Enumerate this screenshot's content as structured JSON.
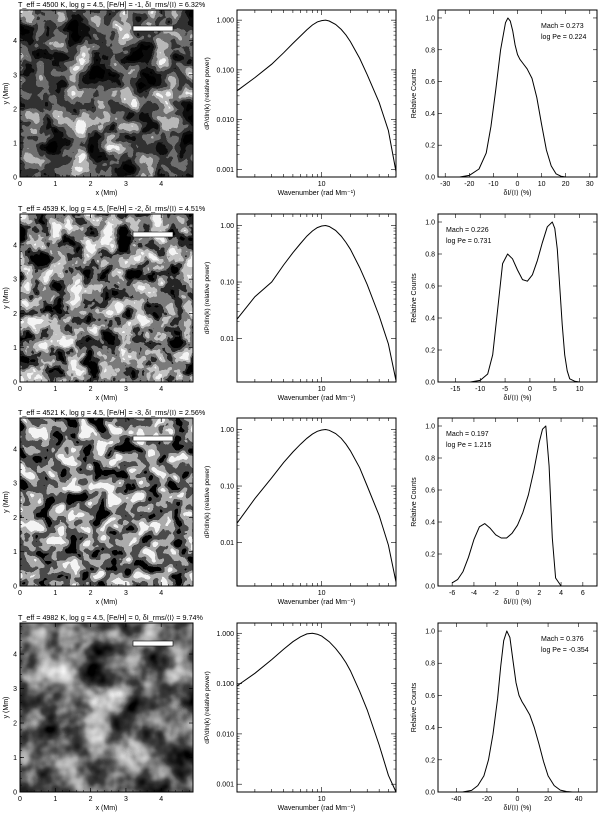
{
  "chart_data": [
    {
      "type": "image",
      "title": "T_eff = 4500 K, log g = 4.5, [Fe/H] = -1, δI_rms/⟨I⟩ = 6.32%",
      "xlabel": "x (Mm)",
      "ylabel": "y (Mm)",
      "xticks": [
        "0",
        "1",
        "2",
        "3",
        "4"
      ],
      "yticks": [
        "0",
        "1",
        "2",
        "3",
        "4"
      ],
      "xlim": [
        0,
        4.9
      ],
      "ylim": [
        0,
        4.9
      ]
    },
    {
      "type": "line",
      "yscale": "log",
      "xlabel": "Wavenumber (rad Mm⁻¹)",
      "ylabel": "dP/dln(k) (relative power)",
      "xtick_labels": [
        "10"
      ],
      "ytick_labels": [
        "0.001",
        "0.010",
        "0.100",
        "1.000"
      ],
      "ylim": [
        0.0007,
        1.6
      ],
      "x": [
        1.3,
        2,
        3,
        4,
        5,
        6,
        7,
        8,
        9,
        10,
        11,
        12,
        14,
        16,
        18,
        20,
        25,
        30,
        40,
        50,
        60
      ],
      "y": [
        0.038,
        0.07,
        0.13,
        0.22,
        0.34,
        0.48,
        0.64,
        0.8,
        0.92,
        0.98,
        1.0,
        0.96,
        0.82,
        0.65,
        0.5,
        0.37,
        0.17,
        0.08,
        0.022,
        0.006,
        0.0009
      ]
    },
    {
      "type": "line",
      "xlabel": "δI/⟨I⟩ (%)",
      "ylabel": "Relative Counts",
      "xtick_labels": [
        "-30",
        "-20",
        "-10",
        "0",
        "10",
        "20",
        "30"
      ],
      "ytick_labels": [
        "0.0",
        "0.2",
        "0.4",
        "0.6",
        "0.8",
        "1.0"
      ],
      "xlim": [
        -33,
        33
      ],
      "ylim": [
        0,
        1.05
      ],
      "annotations": [
        "Mach = 0.273",
        "log Pe = 0.224"
      ],
      "x": [
        -24,
        -20,
        -16,
        -13,
        -11,
        -9,
        -7,
        -5,
        -4,
        -3,
        -2,
        -1,
        0,
        1,
        2,
        4,
        6,
        8,
        10,
        12,
        14,
        16,
        18,
        20
      ],
      "y": [
        0.0,
        0.01,
        0.05,
        0.15,
        0.32,
        0.55,
        0.8,
        0.97,
        1.0,
        0.98,
        0.92,
        0.83,
        0.77,
        0.74,
        0.72,
        0.68,
        0.62,
        0.5,
        0.33,
        0.17,
        0.07,
        0.02,
        0.005,
        0.0
      ]
    },
    {
      "type": "image",
      "title": "T_eff = 4539 K, log g = 4.5, [Fe/H] = -2, δI_rms/⟨I⟩ = 4.51%",
      "xlabel": "x (Mm)",
      "ylabel": "y (Mm)",
      "xticks": [
        "0",
        "1",
        "2",
        "3",
        "4"
      ],
      "yticks": [
        "0",
        "1",
        "2",
        "3",
        "4"
      ],
      "xlim": [
        0,
        4.9
      ],
      "ylim": [
        0,
        4.9
      ]
    },
    {
      "type": "line",
      "yscale": "log",
      "xlabel": "Wavenumber (rad Mm⁻¹)",
      "ylabel": "dP/dln(k) (relative power)",
      "xtick_labels": [
        "10"
      ],
      "ytick_labels": [
        "0.01",
        "0.10",
        "1.00"
      ],
      "ylim": [
        0.0017,
        1.6
      ],
      "x": [
        1.3,
        2,
        3,
        4,
        5,
        6,
        7,
        8,
        9,
        10,
        11,
        12,
        14,
        16,
        18,
        20,
        25,
        30,
        40,
        50,
        60
      ],
      "y": [
        0.022,
        0.055,
        0.1,
        0.2,
        0.33,
        0.48,
        0.65,
        0.8,
        0.92,
        0.98,
        1.0,
        0.96,
        0.82,
        0.65,
        0.5,
        0.38,
        0.18,
        0.09,
        0.025,
        0.008,
        0.0018
      ]
    },
    {
      "type": "line",
      "xlabel": "δI/⟨I⟩ (%)",
      "ylabel": "Relative Counts",
      "xtick_labels": [
        "-15",
        "-10",
        "-5",
        "0",
        "5",
        "10"
      ],
      "ytick_labels": [
        "0.0",
        "0.2",
        "0.4",
        "0.6",
        "0.8",
        "1.0"
      ],
      "xlim": [
        -18.5,
        13.5
      ],
      "ylim": [
        0,
        1.05
      ],
      "annotations": [
        "Mach = 0.226",
        "log Pe = 0.731"
      ],
      "x": [
        -12,
        -10,
        -8.5,
        -7.5,
        -6.5,
        -5.5,
        -4.5,
        -3.5,
        -2.5,
        -1.5,
        -0.5,
        0.5,
        1.5,
        2.5,
        3.5,
        4.5,
        5,
        5.5,
        6,
        6.5,
        7,
        7.5,
        8,
        9,
        10
      ],
      "y": [
        0.0,
        0.01,
        0.05,
        0.17,
        0.45,
        0.74,
        0.8,
        0.77,
        0.7,
        0.64,
        0.63,
        0.67,
        0.76,
        0.87,
        0.97,
        1.0,
        0.96,
        0.83,
        0.6,
        0.36,
        0.17,
        0.07,
        0.02,
        0.005,
        0.0
      ]
    },
    {
      "type": "image",
      "title": "T_eff = 4521 K, log g = 4.5, [Fe/H] = -3, δI_rms/⟨I⟩ = 2.56%",
      "xlabel": "x (Mm)",
      "ylabel": "y (Mm)",
      "xticks": [
        "0",
        "1",
        "2",
        "3",
        "4"
      ],
      "yticks": [
        "0",
        "1",
        "2",
        "3",
        "4"
      ],
      "xlim": [
        0,
        4.9
      ],
      "ylim": [
        0,
        4.9
      ]
    },
    {
      "type": "line",
      "yscale": "log",
      "xlabel": "Wavenumber (rad Mm⁻¹)",
      "ylabel": "dP/dln(k) (relative power)",
      "xtick_labels": [
        "10"
      ],
      "ytick_labels": [
        "0.01",
        "0.10",
        "1.00"
      ],
      "ylim": [
        0.0017,
        1.6
      ],
      "x": [
        1.3,
        2,
        3,
        4,
        5,
        6,
        7,
        8,
        9,
        10,
        11,
        12,
        14,
        16,
        18,
        20,
        25,
        30,
        40,
        50,
        60
      ],
      "y": [
        0.022,
        0.06,
        0.14,
        0.26,
        0.4,
        0.55,
        0.7,
        0.83,
        0.93,
        0.98,
        1.0,
        0.97,
        0.85,
        0.7,
        0.55,
        0.42,
        0.21,
        0.1,
        0.03,
        0.009,
        0.002
      ]
    },
    {
      "type": "line",
      "xlabel": "δI/⟨I⟩ (%)",
      "ylabel": "Relative Counts",
      "xtick_labels": [
        "-6",
        "-4",
        "-2",
        "0",
        "2",
        "4",
        "6"
      ],
      "ytick_labels": [
        "0.0",
        "0.2",
        "0.4",
        "0.6",
        "0.8",
        "1.0"
      ],
      "xlim": [
        -7.3,
        7.3
      ],
      "ylim": [
        0,
        1.05
      ],
      "annotations": [
        "Mach = 0.197",
        "log Pe = 1.215"
      ],
      "x": [
        -6,
        -5.5,
        -5,
        -4.5,
        -4,
        -3.5,
        -3,
        -2.5,
        -2,
        -1.5,
        -1,
        -0.5,
        0,
        0.5,
        1,
        1.5,
        2,
        2.3,
        2.6,
        2.9,
        3.2,
        3.5,
        4
      ],
      "y": [
        0.02,
        0.04,
        0.09,
        0.18,
        0.29,
        0.37,
        0.39,
        0.36,
        0.32,
        0.3,
        0.3,
        0.33,
        0.38,
        0.46,
        0.57,
        0.72,
        0.9,
        0.98,
        1.0,
        0.75,
        0.3,
        0.05,
        0.0
      ]
    },
    {
      "type": "image",
      "title": "T_eff = 4982 K, log g = 4.5, [Fe/H] = 0, δI_rms/⟨I⟩ = 9.74%",
      "xlabel": "x (Mm)",
      "ylabel": "y (Mm)",
      "xticks": [
        "0",
        "1",
        "2",
        "3",
        "4"
      ],
      "yticks": [
        "0",
        "1",
        "2",
        "3",
        "4"
      ],
      "xlim": [
        0,
        4.9
      ],
      "ylim": [
        0,
        4.9
      ]
    },
    {
      "type": "line",
      "yscale": "log",
      "xlabel": "Wavenumber (rad Mm⁻¹)",
      "ylabel": "dP/dln(k) (relative power)",
      "xtick_labels": [
        "10"
      ],
      "ytick_labels": [
        "0.001",
        "0.010",
        "0.100",
        "1.000"
      ],
      "ylim": [
        0.0007,
        1.6
      ],
      "x": [
        1.3,
        2,
        3,
        4,
        5,
        6,
        7,
        8,
        9,
        10,
        12,
        14,
        16,
        18,
        20,
        25,
        30,
        40,
        50,
        60
      ],
      "y": [
        0.09,
        0.16,
        0.3,
        0.48,
        0.68,
        0.85,
        0.97,
        1.0,
        0.96,
        0.88,
        0.68,
        0.5,
        0.36,
        0.26,
        0.18,
        0.07,
        0.03,
        0.006,
        0.0015,
        0.0004
      ]
    },
    {
      "type": "line",
      "xlabel": "δI/⟨I⟩ (%)",
      "ylabel": "Relative Counts",
      "xtick_labels": [
        "-40",
        "-20",
        "0",
        "20",
        "40"
      ],
      "ytick_labels": [
        "0.0",
        "0.2",
        "0.4",
        "0.6",
        "0.8",
        "1.0"
      ],
      "xlim": [
        -52,
        52
      ],
      "ylim": [
        0,
        1.05
      ],
      "annotations": [
        "Mach = 0.376",
        "log Pe = -0.354"
      ],
      "x": [
        -36,
        -30,
        -26,
        -22,
        -19,
        -16,
        -13,
        -11,
        -9,
        -7,
        -5,
        -3,
        -1,
        1,
        3,
        5,
        8,
        11,
        14,
        17,
        20,
        24,
        28,
        32,
        36
      ],
      "y": [
        0.0,
        0.01,
        0.04,
        0.1,
        0.2,
        0.36,
        0.58,
        0.78,
        0.94,
        1.0,
        0.96,
        0.82,
        0.68,
        0.6,
        0.56,
        0.53,
        0.48,
        0.4,
        0.3,
        0.19,
        0.1,
        0.04,
        0.012,
        0.003,
        0.0
      ]
    }
  ]
}
